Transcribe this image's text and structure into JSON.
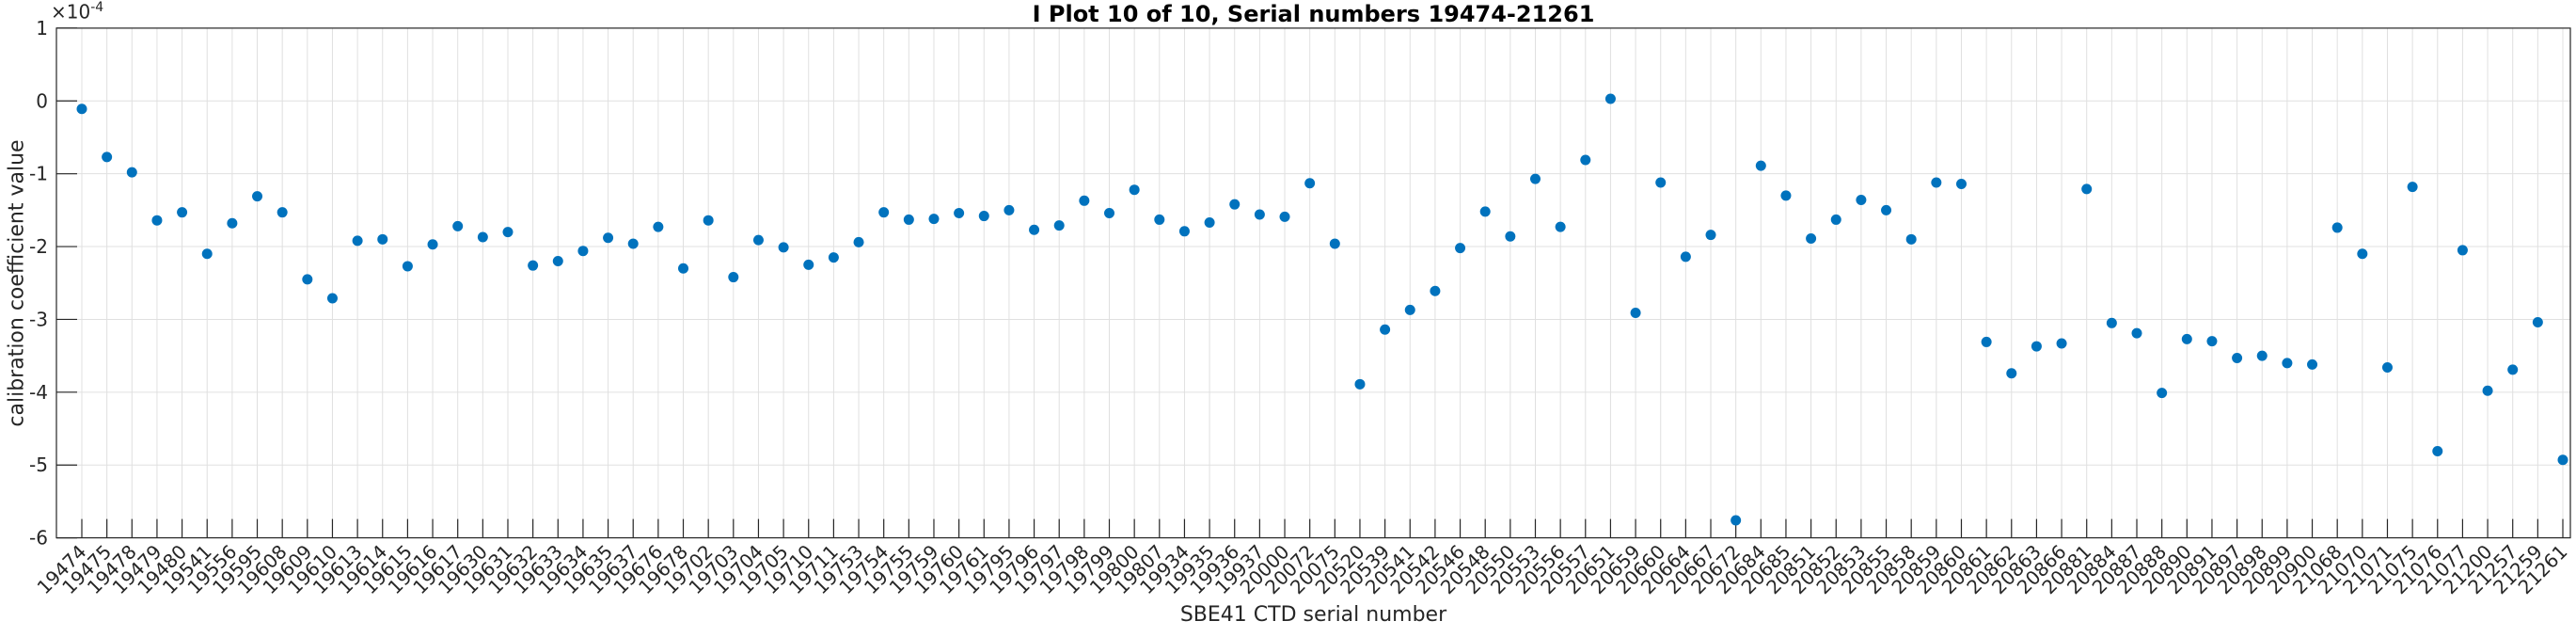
{
  "chart_data": {
    "type": "scatter",
    "title": "I Plot 10 of 10, Serial numbers 19474-21261",
    "xlabel": "SBE41 CTD serial number",
    "ylabel": "calibration coefficient value",
    "y_exponent": {
      "base": "×10",
      "exp": "-4"
    },
    "value_scale": "1e-4",
    "ylim": [
      -6,
      1
    ],
    "y_ticks": [
      1,
      0,
      -1,
      -2,
      -3,
      -4,
      -5,
      -6
    ],
    "grid": true,
    "legend_position": "none",
    "marker_color": "#0072BD",
    "grid_color": "#e0e0e0",
    "axis_color": "#262626",
    "categories": [
      "19474",
      "19475",
      "19478",
      "19479",
      "19480",
      "19541",
      "19556",
      "19595",
      "19608",
      "19609",
      "19610",
      "19613",
      "19614",
      "19615",
      "19616",
      "19617",
      "19630",
      "19631",
      "19632",
      "19633",
      "19634",
      "19635",
      "19637",
      "19676",
      "19678",
      "19702",
      "19703",
      "19704",
      "19705",
      "19710",
      "19711",
      "19753",
      "19754",
      "19755",
      "19759",
      "19760",
      "19761",
      "19795",
      "19796",
      "19797",
      "19798",
      "19799",
      "19800",
      "19807",
      "19934",
      "19935",
      "19936",
      "19937",
      "20000",
      "20072",
      "20075",
      "20520",
      "20539",
      "20541",
      "20542",
      "20546",
      "20548",
      "20550",
      "20553",
      "20556",
      "20557",
      "20651",
      "20659",
      "20660",
      "20664",
      "20667",
      "20672",
      "20684",
      "20685",
      "20851",
      "20852",
      "20853",
      "20855",
      "20858",
      "20859",
      "20860",
      "20861",
      "20862",
      "20863",
      "20866",
      "20881",
      "20884",
      "20887",
      "20888",
      "20890",
      "20891",
      "20897",
      "20898",
      "20899",
      "20900",
      "21068",
      "21070",
      "21071",
      "21075",
      "21076",
      "21077",
      "21200",
      "21257",
      "21259",
      "21261"
    ],
    "values": [
      -0.11,
      -0.77,
      -0.98,
      -1.64,
      -1.53,
      -2.1,
      -1.68,
      -1.31,
      -1.53,
      -2.45,
      -2.71,
      -1.92,
      -1.9,
      -2.27,
      -1.97,
      -1.72,
      -1.87,
      -1.8,
      -2.26,
      -2.2,
      -2.06,
      -1.88,
      -1.96,
      -1.73,
      -2.3,
      -1.64,
      -2.42,
      -1.91,
      -2.01,
      -2.25,
      -2.15,
      -1.94,
      -1.53,
      -1.63,
      -1.62,
      -1.54,
      -1.58,
      -1.5,
      -1.77,
      -1.71,
      -1.37,
      -1.54,
      -1.22,
      -1.63,
      -1.79,
      -1.67,
      -1.42,
      -1.56,
      -1.59,
      -1.13,
      -1.96,
      -3.89,
      -3.14,
      -2.87,
      -2.61,
      -2.02,
      -1.52,
      -1.86,
      -1.07,
      -1.73,
      -0.81,
      0.03,
      -2.91,
      -1.12,
      -2.14,
      -1.84,
      -5.76,
      -0.89,
      -1.3,
      -1.89,
      -1.63,
      -1.36,
      -1.5,
      -1.9,
      -1.12,
      -1.14,
      -3.31,
      -3.74,
      -3.37,
      -3.33,
      -1.21,
      -3.05,
      -3.19,
      -4.01,
      -3.27,
      -3.3,
      -3.53,
      -3.5,
      -3.6,
      -3.62,
      -1.74,
      -2.1,
      -3.66,
      -1.18,
      -4.81,
      -2.05,
      -3.98,
      -3.69,
      -3.04,
      -4.93
    ]
  }
}
